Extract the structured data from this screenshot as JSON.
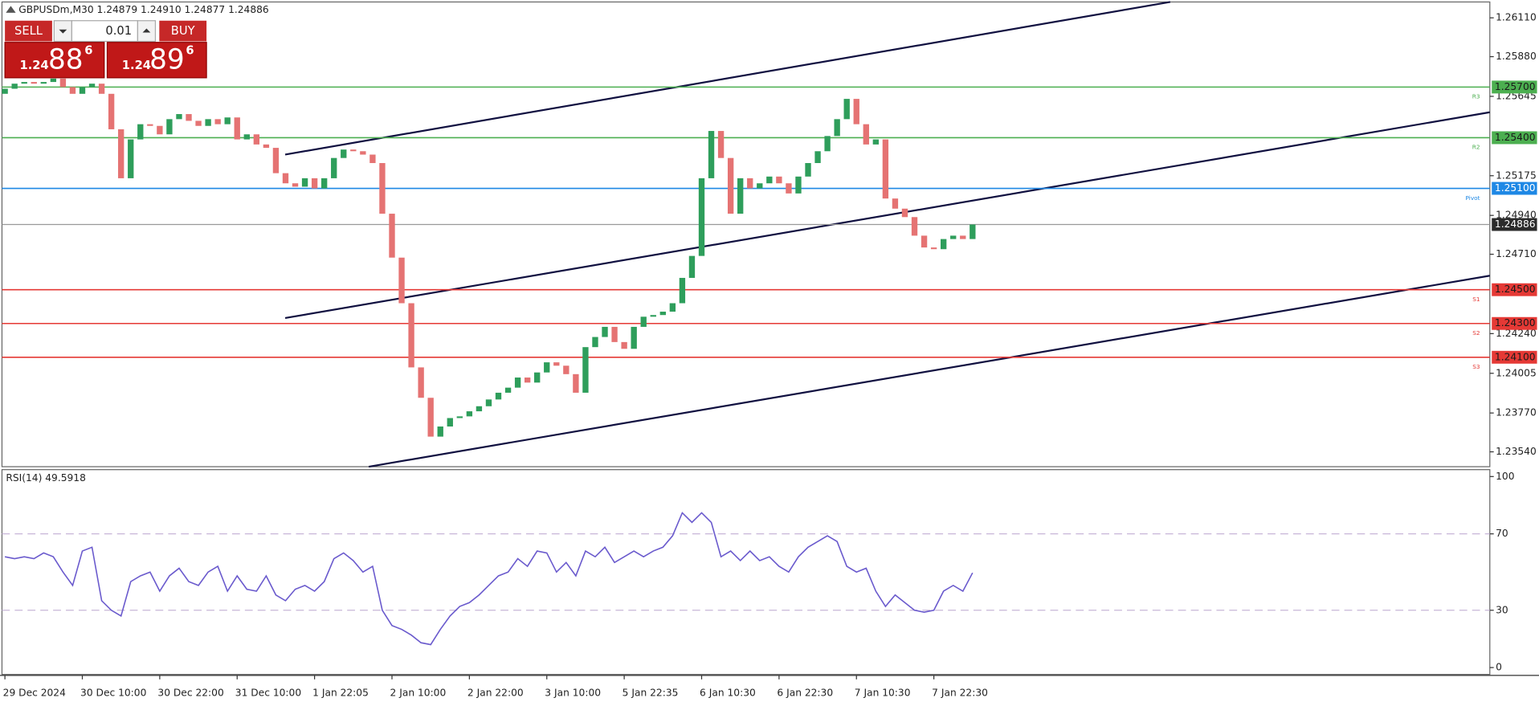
{
  "header": "GBPUSDm,M30  1.24879 1.24910 1.24877 1.24886",
  "trade_panel": {
    "sell": "SELL",
    "lot": "0.01",
    "buy": "BUY",
    "bid": {
      "big": "1.24",
      "mid": "88",
      "sup": "6"
    },
    "ask": {
      "big": "1.24",
      "mid": "89",
      "sup": "6"
    }
  },
  "chart_data": [
    {
      "type": "candlestick",
      "categories": [
        "29 Dec 2024",
        null,
        null,
        null,
        null,
        null,
        null,
        null,
        "30 Dec 10:00",
        null,
        null,
        null,
        null,
        null,
        null,
        null,
        "30 Dec 22:00",
        null,
        null,
        null,
        null,
        null,
        null,
        null,
        "31 Dec 10:00",
        null,
        null,
        null,
        null,
        null,
        null,
        null,
        "1 Jan 22:05",
        null,
        null,
        null,
        null,
        null,
        null,
        null,
        "2 Jan 10:00",
        null,
        null,
        null,
        null,
        null,
        null,
        null,
        "2 Jan 22:00",
        null,
        null,
        null,
        null,
        null,
        null,
        null,
        "3 Jan 10:00",
        null,
        null,
        null,
        null,
        null,
        null,
        null,
        "5 Jan 22:35",
        null,
        null,
        null,
        null,
        null,
        null,
        null,
        "6 Jan 10:30",
        null,
        null,
        null,
        null,
        null,
        null,
        null,
        "6 Jan 22:30",
        null,
        null,
        null,
        null,
        null,
        null,
        null,
        "7 Jan 10:30",
        null,
        null,
        null,
        null,
        null,
        null,
        null,
        "7 Jan 22:30",
        null,
        null,
        null,
        null
      ],
      "open": [
        1.2566,
        1.2569,
        1.2572,
        1.2573,
        1.2572,
        1.2573,
        1.2575,
        1.257,
        1.2566,
        1.257,
        1.2572,
        1.2566,
        1.2545,
        1.2516,
        1.2539,
        1.2548,
        1.2547,
        1.2542,
        1.2551,
        1.2554,
        1.255,
        1.2547,
        1.2551,
        1.2548,
        1.2552,
        1.2539,
        1.2542,
        1.2536,
        1.2534,
        1.2519,
        1.2513,
        1.2511,
        1.2516,
        1.251,
        1.2516,
        1.2528,
        1.2533,
        1.2532,
        1.253,
        1.2525,
        1.2495,
        1.2469,
        1.2442,
        1.2404,
        1.2386,
        1.2363,
        1.2369,
        1.2374,
        1.2375,
        1.2378,
        1.2381,
        1.2385,
        1.2389,
        1.2392,
        1.2398,
        1.2395,
        1.2401,
        1.2407,
        1.2405,
        1.24,
        1.2389,
        1.2416,
        1.2422,
        1.2428,
        1.2419,
        1.2415,
        1.2428,
        1.2434,
        1.2435,
        1.2437,
        1.2442,
        1.2457,
        1.247,
        1.2516,
        1.2544,
        1.2528,
        1.2495,
        1.2516,
        1.251,
        1.2513,
        1.2517,
        1.2513,
        1.2507,
        1.2517,
        1.2525,
        1.2532,
        1.2541,
        1.2551,
        1.2563,
        1.2548,
        1.2536,
        1.2539,
        1.2504,
        1.2498,
        1.2493,
        1.2482,
        1.2475,
        1.2474,
        1.248,
        1.2482,
        1.248
      ],
      "close": [
        1.2569,
        1.2572,
        1.2573,
        1.2572,
        1.2573,
        1.2575,
        1.257,
        1.2566,
        1.257,
        1.2572,
        1.2566,
        1.2545,
        1.2516,
        1.2539,
        1.2548,
        1.2547,
        1.2542,
        1.2551,
        1.2554,
        1.255,
        1.2547,
        1.2551,
        1.2548,
        1.2552,
        1.2539,
        1.2542,
        1.2536,
        1.2534,
        1.2519,
        1.2513,
        1.2511,
        1.2516,
        1.251,
        1.2516,
        1.2528,
        1.2533,
        1.2532,
        1.253,
        1.2525,
        1.2495,
        1.2469,
        1.2442,
        1.2404,
        1.2386,
        1.2363,
        1.2369,
        1.2374,
        1.2375,
        1.2378,
        1.2381,
        1.2385,
        1.2389,
        1.2392,
        1.2398,
        1.2395,
        1.2401,
        1.2407,
        1.2405,
        1.24,
        1.2389,
        1.2416,
        1.2422,
        1.2428,
        1.2419,
        1.2415,
        1.2428,
        1.2434,
        1.2435,
        1.2437,
        1.2442,
        1.2457,
        1.247,
        1.2516,
        1.2544,
        1.2528,
        1.2495,
        1.2516,
        1.251,
        1.2513,
        1.2517,
        1.2513,
        1.2507,
        1.2517,
        1.2525,
        1.2532,
        1.2541,
        1.2551,
        1.2563,
        1.2548,
        1.2536,
        1.2539,
        1.2504,
        1.2498,
        1.2493,
        1.2482,
        1.2475,
        1.2474,
        1.248,
        1.2482,
        1.248,
        1.24886
      ],
      "up_color": "#2e9e5b",
      "down_color": "#e57373",
      "ylim": [
        1.23452,
        1.26198
      ],
      "yticks": [
        {
          "value": 1.2611,
          "label": "1.26110"
        },
        {
          "value": 1.2588,
          "label": "1.25880"
        },
        {
          "value": 1.25645,
          "label": "1.25645"
        },
        {
          "value": 1.25175,
          "label": "1.25175"
        },
        {
          "value": 1.2494,
          "label": "1.24940"
        },
        {
          "value": 1.2471,
          "label": "1.24710"
        },
        {
          "value": 1.2424,
          "label": "1.24240"
        },
        {
          "value": 1.24005,
          "label": "1.24005"
        },
        {
          "value": 1.2377,
          "label": "1.23770"
        },
        {
          "value": 1.2354,
          "label": "1.23540"
        }
      ],
      "levels": [
        {
          "value": 1.257,
          "label": "1.25700",
          "name": "R3",
          "color": "#4caf50"
        },
        {
          "value": 1.254,
          "label": "1.25400",
          "name": "R2",
          "color": "#4caf50"
        },
        {
          "value": 1.251,
          "label": "1.25100",
          "name": "Pivot",
          "color": "#1e88e5"
        },
        {
          "value": 1.24886,
          "label": "1.24886",
          "color": "#2b2b2b"
        },
        {
          "value": 1.245,
          "label": "1.24500",
          "name": "S1",
          "color": "#e53935"
        },
        {
          "value": 1.243,
          "label": "1.24300",
          "name": "S2",
          "color": "#e53935"
        },
        {
          "value": 1.241,
          "label": "1.24100",
          "name": "S3",
          "color": "#e53935"
        }
      ]
    },
    {
      "type": "line",
      "title": "RSI(14) 49.5918",
      "color": "#6a5acd",
      "values": [
        58,
        57,
        58,
        57,
        60,
        58,
        50,
        43,
        61,
        63,
        35,
        30,
        27,
        45,
        48,
        50,
        40,
        48,
        52,
        45,
        43,
        50,
        53,
        40,
        48,
        41,
        40,
        48,
        38,
        35,
        41,
        43,
        40,
        45,
        57,
        60,
        56,
        50,
        53,
        30,
        22,
        20,
        17,
        13,
        12,
        20,
        27,
        32,
        34,
        38,
        43,
        48,
        50,
        57,
        53,
        61,
        60,
        50,
        55,
        48,
        61,
        58,
        63,
        55,
        58,
        61,
        58,
        61,
        63,
        69,
        81,
        76,
        81,
        76,
        58,
        61,
        56,
        61,
        56,
        58,
        53,
        50,
        58,
        63,
        66,
        69,
        66,
        53,
        50,
        52,
        40,
        32,
        38,
        34,
        30,
        29,
        30,
        40,
        43,
        40,
        49.5918
      ],
      "ylim": [
        -3.6,
        103.1
      ],
      "yticks": [
        0,
        30,
        70,
        100
      ],
      "levels": [
        30,
        70
      ],
      "level_color": "#c8b6d8"
    }
  ]
}
